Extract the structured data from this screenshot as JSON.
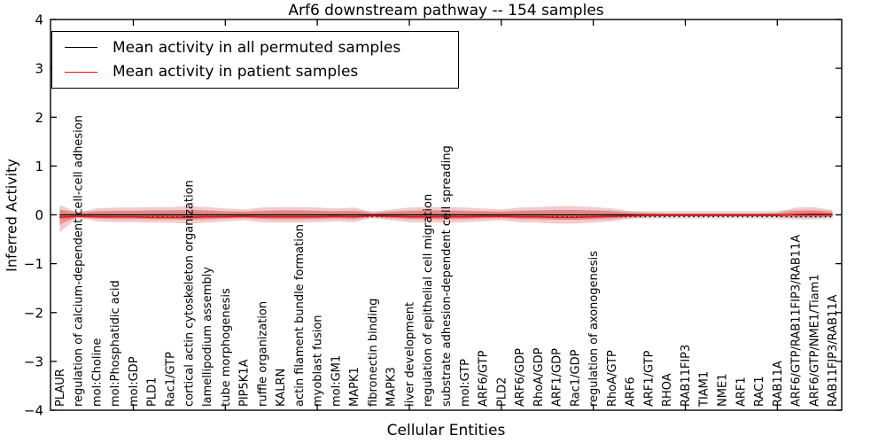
{
  "chart": {
    "title": "Arf6 downstream pathway -- 154 samples",
    "xlabel": "Cellular Entities",
    "ylabel": "Inferred Activity"
  },
  "legend": {
    "items": [
      {
        "label": "Mean activity in all permuted samples",
        "color": "#000000"
      },
      {
        "label": "Mean activity in patient samples",
        "color": "#ee1111"
      }
    ]
  },
  "chart_data": {
    "type": "line",
    "title": "Arf6 downstream pathway -- 154 samples",
    "xlabel": "Cellular Entities",
    "ylabel": "Inferred Activity",
    "ylim": [
      -4,
      4
    ],
    "yticks": [
      -4,
      -3,
      -2,
      -1,
      0,
      1,
      2,
      3,
      4
    ],
    "ytick_labels": [
      "−4",
      "−3",
      "−2",
      "−1",
      "0",
      "1",
      "2",
      "3",
      "4"
    ],
    "xtick_positions": [
      5,
      10,
      15,
      20,
      25,
      30,
      35,
      40
    ],
    "grid": false,
    "legend_position": "upper left",
    "categories": [
      "PLAUR",
      "regulation of calcium-dependent cell-cell adhesion",
      "mol:Choline",
      "mol:Phosphatidic acid",
      "mol:GDP",
      "PLD1",
      "Rac1/GTP",
      "cortical actin cytoskeleton organization",
      "lamellipodium assembly",
      "tube morphogenesis",
      "PIP5K1A",
      "ruffle organization",
      "KALRN",
      "actin filament bundle formation",
      "myoblast fusion",
      "mol:GM1",
      "MAPK1",
      "fibronectin binding",
      "MAPK3",
      "liver development",
      "regulation of epithelial cell migration",
      "substrate adhesion-dependent cell spreading",
      "mol:GTP",
      "ARF6/GTP",
      "PLD2",
      "ARF6/GDP",
      "RhoA/GDP",
      "ARF1/GDP",
      "Rac1/GDP",
      "regulation of axonogenesis",
      "RhoA/GTP",
      "ARF6",
      "ARF1/GTP",
      "RHOA",
      "RAB11FIP3",
      "TIAM1",
      "NME1",
      "ARF1",
      "RAC1",
      "RAB11A",
      "ARF6/GTP/RAB11FIP3/RAB11A",
      "ARF6/GTP/NME1/Tiam1",
      "RAB11FIP3/RAB11A"
    ],
    "series": [
      {
        "name": "Mean activity in all permuted samples",
        "color": "#000000",
        "style": "solid-with-dotted-overlay",
        "values": [
          0,
          0,
          0,
          0,
          0,
          0,
          0,
          0,
          0,
          0,
          0,
          0,
          0,
          0,
          0,
          0,
          0,
          0,
          0,
          0,
          0,
          0,
          0,
          0,
          0,
          0,
          0,
          0,
          0,
          0,
          0,
          0,
          0,
          0,
          0,
          0,
          0,
          0,
          0,
          0,
          0,
          0,
          0
        ]
      },
      {
        "name": "Mean activity in patient samples",
        "color": "#ee1111",
        "style": "solid",
        "values": [
          -0.05,
          -0.03,
          -0.04,
          -0.04,
          -0.04,
          -0.05,
          -0.05,
          -0.05,
          -0.04,
          -0.04,
          -0.03,
          -0.04,
          -0.04,
          -0.04,
          -0.04,
          -0.03,
          -0.04,
          -0.02,
          -0.03,
          -0.04,
          -0.04,
          -0.04,
          -0.04,
          -0.03,
          -0.03,
          -0.04,
          -0.04,
          -0.05,
          -0.05,
          -0.04,
          -0.03,
          -0.02,
          -0.01,
          -0.01,
          -0.01,
          -0.01,
          -0.01,
          -0.01,
          -0.01,
          -0.01,
          0.01,
          0.02,
          0.01
        ]
      }
    ],
    "bands": [
      {
        "name": "permuted-samples-range",
        "color": "#999999",
        "opacity": 0.28,
        "upper": [
          0.1,
          0.08,
          0.08,
          0.09,
          0.09,
          0.09,
          0.09,
          0.1,
          0.09,
          0.08,
          0.08,
          0.09,
          0.09,
          0.09,
          0.09,
          0.08,
          0.09,
          0.08,
          0.08,
          0.09,
          0.09,
          0.09,
          0.09,
          0.08,
          0.08,
          0.09,
          0.09,
          0.1,
          0.1,
          0.09,
          0.09,
          0.08,
          0.08,
          0.08,
          0.08,
          0.08,
          0.08,
          0.08,
          0.08,
          0.09,
          0.1,
          0.1,
          0.09
        ],
        "lower": [
          -0.1,
          -0.08,
          -0.08,
          -0.09,
          -0.09,
          -0.09,
          -0.09,
          -0.1,
          -0.09,
          -0.08,
          -0.08,
          -0.09,
          -0.09,
          -0.09,
          -0.09,
          -0.08,
          -0.09,
          -0.08,
          -0.08,
          -0.09,
          -0.09,
          -0.09,
          -0.09,
          -0.08,
          -0.08,
          -0.09,
          -0.09,
          -0.1,
          -0.1,
          -0.09,
          -0.09,
          -0.08,
          -0.08,
          -0.08,
          -0.08,
          -0.08,
          -0.08,
          -0.08,
          -0.08,
          -0.09,
          -0.1,
          -0.1,
          -0.09
        ]
      },
      {
        "name": "patient-samples-outer-band",
        "color": "#d94040",
        "opacity": 0.28,
        "upper": [
          0.2,
          0.05,
          0.13,
          0.15,
          0.15,
          0.16,
          0.16,
          0.18,
          0.16,
          0.13,
          0.11,
          0.15,
          0.16,
          0.16,
          0.15,
          0.13,
          0.15,
          0.05,
          0.11,
          0.15,
          0.16,
          0.16,
          0.15,
          0.13,
          0.11,
          0.15,
          0.16,
          0.18,
          0.18,
          0.16,
          0.13,
          0.07,
          0.05,
          0.04,
          0.04,
          0.04,
          0.04,
          0.04,
          0.04,
          0.05,
          0.15,
          0.16,
          0.09
        ],
        "lower": [
          -0.36,
          -0.05,
          -0.13,
          -0.15,
          -0.15,
          -0.16,
          -0.16,
          -0.18,
          -0.16,
          -0.13,
          -0.11,
          -0.15,
          -0.16,
          -0.16,
          -0.15,
          -0.13,
          -0.15,
          -0.05,
          -0.11,
          -0.15,
          -0.16,
          -0.16,
          -0.15,
          -0.13,
          -0.11,
          -0.15,
          -0.16,
          -0.18,
          -0.18,
          -0.16,
          -0.13,
          -0.07,
          -0.05,
          -0.04,
          -0.04,
          -0.04,
          -0.04,
          -0.04,
          -0.04,
          -0.05,
          -0.07,
          -0.07,
          -0.05
        ]
      },
      {
        "name": "patient-samples-inner-band",
        "color": "#d94040",
        "opacity": 0.38,
        "upper": [
          0.11,
          0.03,
          0.07,
          0.08,
          0.08,
          0.09,
          0.09,
          0.1,
          0.09,
          0.07,
          0.06,
          0.08,
          0.09,
          0.09,
          0.08,
          0.07,
          0.08,
          0.03,
          0.06,
          0.08,
          0.09,
          0.09,
          0.08,
          0.07,
          0.06,
          0.08,
          0.09,
          0.1,
          0.1,
          0.09,
          0.07,
          0.04,
          0.03,
          0.02,
          0.02,
          0.02,
          0.02,
          0.02,
          0.02,
          0.03,
          0.08,
          0.09,
          0.05
        ],
        "lower": [
          -0.2,
          -0.03,
          -0.07,
          -0.08,
          -0.08,
          -0.09,
          -0.09,
          -0.1,
          -0.09,
          -0.07,
          -0.06,
          -0.08,
          -0.09,
          -0.09,
          -0.08,
          -0.07,
          -0.08,
          -0.03,
          -0.06,
          -0.08,
          -0.09,
          -0.09,
          -0.08,
          -0.07,
          -0.06,
          -0.08,
          -0.09,
          -0.1,
          -0.1,
          -0.09,
          -0.07,
          -0.04,
          -0.03,
          -0.02,
          -0.02,
          -0.02,
          -0.02,
          -0.02,
          -0.02,
          -0.03,
          -0.04,
          -0.04,
          -0.03
        ]
      }
    ]
  }
}
